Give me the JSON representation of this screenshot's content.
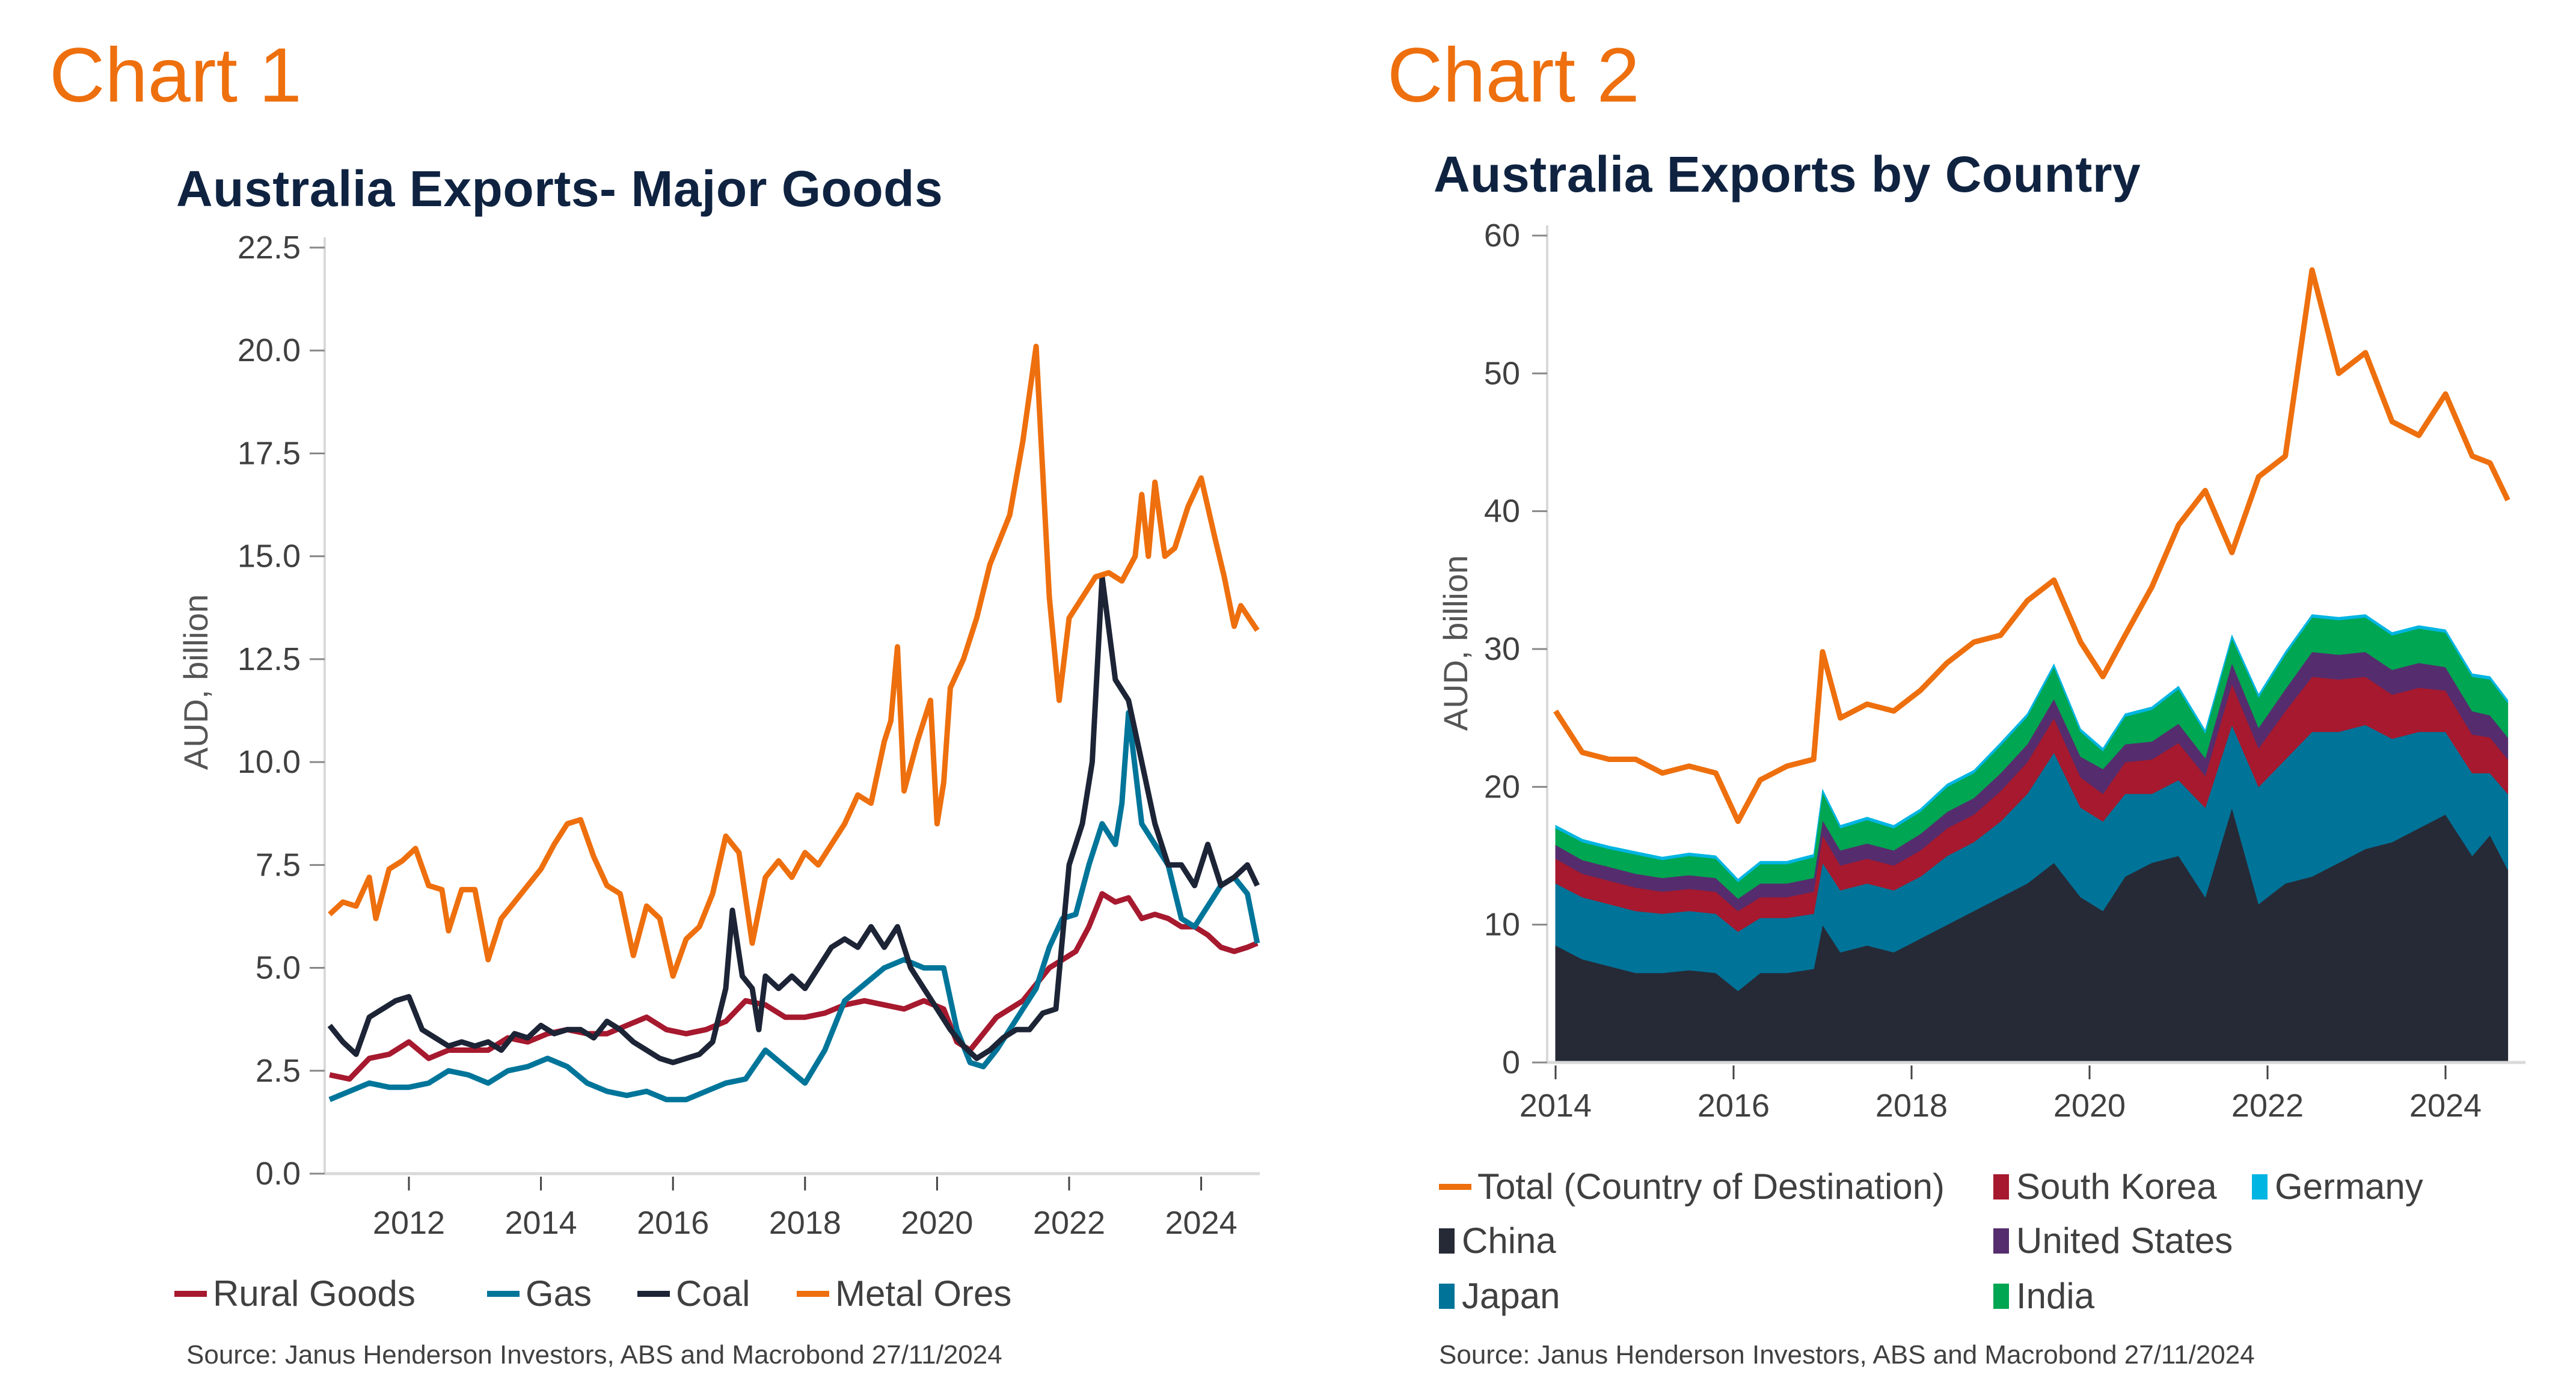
{
  "labels": {
    "chart1": "Chart 1",
    "chart2": "Chart 2"
  },
  "chart_data": [
    {
      "type": "line",
      "title": "Australia Exports- Major Goods",
      "xlabel": "",
      "ylabel": "AUD, billion",
      "xlim": [
        2010.75,
        2024.9
      ],
      "ylim": [
        0,
        22.5
      ],
      "yticks": [
        "0.0",
        "2.5",
        "5.0",
        "7.5",
        "10.0",
        "12.5",
        "15.0",
        "17.5",
        "20.0",
        "22.5"
      ],
      "xticks": [
        "2012",
        "2014",
        "2016",
        "2018",
        "2020",
        "2022",
        "2024"
      ],
      "grid": false,
      "legend_position": "bottom",
      "source": "Source: Janus Henderson Investors, ABS and Macrobond  27/11/2024",
      "series": [
        {
          "name": "Rural Goods",
          "color": "#a6192e",
          "x": [
            2010.8,
            2011.1,
            2011.4,
            2011.7,
            2012.0,
            2012.3,
            2012.6,
            2012.9,
            2013.2,
            2013.5,
            2013.8,
            2014.1,
            2014.4,
            2014.7,
            2015.0,
            2015.3,
            2015.6,
            2015.9,
            2016.2,
            2016.5,
            2016.8,
            2017.1,
            2017.4,
            2017.7,
            2018.0,
            2018.3,
            2018.6,
            2018.9,
            2019.2,
            2019.5,
            2019.8,
            2020.1,
            2020.3,
            2020.5,
            2020.7,
            2020.9,
            2021.1,
            2021.3,
            2021.5,
            2021.7,
            2021.9,
            2022.1,
            2022.3,
            2022.5,
            2022.7,
            2022.9,
            2023.1,
            2023.3,
            2023.5,
            2023.7,
            2023.9,
            2024.1,
            2024.3,
            2024.5,
            2024.7,
            2024.85
          ],
          "y": [
            2.4,
            2.3,
            2.8,
            2.9,
            3.2,
            2.8,
            3.0,
            3.0,
            3.0,
            3.3,
            3.2,
            3.4,
            3.5,
            3.4,
            3.4,
            3.6,
            3.8,
            3.5,
            3.4,
            3.5,
            3.7,
            4.2,
            4.1,
            3.8,
            3.8,
            3.9,
            4.1,
            4.2,
            4.1,
            4.0,
            4.2,
            4.0,
            3.2,
            3.0,
            3.4,
            3.8,
            4.0,
            4.2,
            4.6,
            5.0,
            5.2,
            5.4,
            6.0,
            6.8,
            6.6,
            6.7,
            6.2,
            6.3,
            6.2,
            6.0,
            6.0,
            5.8,
            5.5,
            5.4,
            5.5,
            5.6
          ]
        },
        {
          "name": "Gas",
          "color": "#00759a",
          "x": [
            2010.8,
            2011.1,
            2011.4,
            2011.7,
            2012.0,
            2012.3,
            2012.6,
            2012.9,
            2013.2,
            2013.5,
            2013.8,
            2014.1,
            2014.4,
            2014.7,
            2015.0,
            2015.3,
            2015.6,
            2015.9,
            2016.2,
            2016.5,
            2016.8,
            2017.1,
            2017.4,
            2017.7,
            2018.0,
            2018.3,
            2018.6,
            2018.9,
            2019.2,
            2019.5,
            2019.8,
            2020.1,
            2020.3,
            2020.5,
            2020.7,
            2020.9,
            2021.1,
            2021.3,
            2021.5,
            2021.7,
            2021.9,
            2022.1,
            2022.3,
            2022.5,
            2022.7,
            2022.8,
            2022.9,
            2023.1,
            2023.3,
            2023.5,
            2023.7,
            2023.9,
            2024.1,
            2024.3,
            2024.5,
            2024.7,
            2024.85
          ],
          "y": [
            1.8,
            2.0,
            2.2,
            2.1,
            2.1,
            2.2,
            2.5,
            2.4,
            2.2,
            2.5,
            2.6,
            2.8,
            2.6,
            2.2,
            2.0,
            1.9,
            2.0,
            1.8,
            1.8,
            2.0,
            2.2,
            2.3,
            3.0,
            2.6,
            2.2,
            3.0,
            4.2,
            4.6,
            5.0,
            5.2,
            5.0,
            5.0,
            3.5,
            2.7,
            2.6,
            3.0,
            3.5,
            4.0,
            4.5,
            5.5,
            6.2,
            6.3,
            7.5,
            8.5,
            8.0,
            9.0,
            11.2,
            8.5,
            8.0,
            7.5,
            6.2,
            6.0,
            6.5,
            7.0,
            7.2,
            6.8,
            5.6
          ]
        },
        {
          "name": "Coal",
          "color": "#1c2436",
          "x": [
            2010.8,
            2011.0,
            2011.2,
            2011.4,
            2011.6,
            2011.8,
            2012.0,
            2012.2,
            2012.4,
            2012.6,
            2012.8,
            2013.0,
            2013.2,
            2013.4,
            2013.6,
            2013.8,
            2014.0,
            2014.2,
            2014.4,
            2014.6,
            2014.8,
            2015.0,
            2015.2,
            2015.4,
            2015.6,
            2015.8,
            2016.0,
            2016.2,
            2016.4,
            2016.6,
            2016.8,
            2016.9,
            2017.05,
            2017.2,
            2017.3,
            2017.4,
            2017.6,
            2017.8,
            2018.0,
            2018.2,
            2018.4,
            2018.6,
            2018.8,
            2019.0,
            2019.2,
            2019.4,
            2019.6,
            2019.8,
            2020.0,
            2020.2,
            2020.4,
            2020.6,
            2020.8,
            2021.0,
            2021.2,
            2021.4,
            2021.6,
            2021.8,
            2022.0,
            2022.2,
            2022.35,
            2022.5,
            2022.7,
            2022.9,
            2023.1,
            2023.3,
            2023.5,
            2023.7,
            2023.9,
            2024.1,
            2024.3,
            2024.5,
            2024.7,
            2024.85
          ],
          "y": [
            3.6,
            3.2,
            2.9,
            3.8,
            4.0,
            4.2,
            4.3,
            3.5,
            3.3,
            3.1,
            3.2,
            3.1,
            3.2,
            3.0,
            3.4,
            3.3,
            3.6,
            3.4,
            3.5,
            3.5,
            3.3,
            3.7,
            3.5,
            3.2,
            3.0,
            2.8,
            2.7,
            2.8,
            2.9,
            3.2,
            4.5,
            6.4,
            4.8,
            4.5,
            3.5,
            4.8,
            4.5,
            4.8,
            4.5,
            5.0,
            5.5,
            5.7,
            5.5,
            6.0,
            5.5,
            6.0,
            5.0,
            4.5,
            4.0,
            3.5,
            3.1,
            2.8,
            3.0,
            3.3,
            3.5,
            3.5,
            3.9,
            4.0,
            7.5,
            8.5,
            10.0,
            14.5,
            12.0,
            11.5,
            10.0,
            8.5,
            7.5,
            7.5,
            7.0,
            8.0,
            7.0,
            7.2,
            7.5,
            7.0
          ]
        },
        {
          "name": "Metal Ores",
          "color": "#ee6f0d",
          "x": [
            2010.8,
            2011.0,
            2011.2,
            2011.4,
            2011.5,
            2011.7,
            2011.9,
            2012.1,
            2012.3,
            2012.5,
            2012.6,
            2012.8,
            2013.0,
            2013.2,
            2013.4,
            2013.6,
            2013.8,
            2014.0,
            2014.2,
            2014.4,
            2014.6,
            2014.8,
            2015.0,
            2015.2,
            2015.4,
            2015.6,
            2015.8,
            2016.0,
            2016.2,
            2016.4,
            2016.6,
            2016.8,
            2017.0,
            2017.2,
            2017.4,
            2017.6,
            2017.8,
            2018.0,
            2018.2,
            2018.4,
            2018.6,
            2018.8,
            2019.0,
            2019.2,
            2019.3,
            2019.4,
            2019.5,
            2019.7,
            2019.9,
            2020.0,
            2020.1,
            2020.2,
            2020.4,
            2020.6,
            2020.8,
            2020.9,
            2021.1,
            2021.3,
            2021.5,
            2021.7,
            2021.85,
            2022.0,
            2022.2,
            2022.4,
            2022.6,
            2022.8,
            2023.0,
            2023.1,
            2023.2,
            2023.3,
            2023.45,
            2023.6,
            2023.8,
            2024.0,
            2024.2,
            2024.35,
            2024.5,
            2024.6,
            2024.85
          ],
          "y": [
            6.3,
            6.6,
            6.5,
            7.2,
            6.2,
            7.4,
            7.6,
            7.9,
            7.0,
            6.9,
            5.9,
            6.9,
            6.9,
            5.2,
            6.2,
            6.6,
            7.0,
            7.4,
            8.0,
            8.5,
            8.6,
            7.7,
            7.0,
            6.8,
            5.3,
            6.5,
            6.2,
            4.8,
            5.7,
            6.0,
            6.8,
            8.2,
            7.8,
            5.6,
            7.2,
            7.6,
            7.2,
            7.8,
            7.5,
            8.0,
            8.5,
            9.2,
            9.0,
            10.5,
            11.0,
            12.8,
            9.3,
            10.5,
            11.5,
            8.5,
            9.5,
            11.8,
            12.5,
            13.5,
            14.8,
            15.2,
            16.0,
            17.8,
            20.1,
            14.0,
            11.5,
            13.5,
            14.0,
            14.5,
            14.6,
            14.4,
            15.0,
            16.5,
            15.0,
            16.8,
            15.0,
            15.2,
            16.2,
            16.9,
            15.5,
            14.5,
            13.3,
            13.8,
            13.2
          ]
        }
      ]
    },
    {
      "type": "area",
      "stacked": true,
      "title": "Australia Exports by Country",
      "xlabel": "",
      "ylabel": "AUD, billion",
      "xlim": [
        2013.95,
        2024.9
      ],
      "ylim": [
        0,
        60
      ],
      "yticks": [
        "0",
        "10",
        "20",
        "30",
        "40",
        "50",
        "60"
      ],
      "xticks": [
        "2014",
        "2016",
        "2018",
        "2020",
        "2022",
        "2024"
      ],
      "grid": false,
      "legend_position": "bottom",
      "source": "Source: Janus Henderson Investors, ABS and Macrobond  27/11/2024",
      "x": [
        2014.0,
        2014.3,
        2014.6,
        2014.9,
        2015.2,
        2015.5,
        2015.8,
        2016.05,
        2016.3,
        2016.6,
        2016.9,
        2017.0,
        2017.2,
        2017.5,
        2017.8,
        2018.1,
        2018.4,
        2018.7,
        2019.0,
        2019.3,
        2019.6,
        2019.9,
        2020.15,
        2020.4,
        2020.7,
        2021.0,
        2021.3,
        2021.6,
        2021.9,
        2022.2,
        2022.5,
        2022.8,
        2023.1,
        2023.4,
        2023.7,
        2024.0,
        2024.3,
        2024.5,
        2024.7
      ],
      "series": [
        {
          "name": "China",
          "color": "#262a36",
          "kind": "area",
          "values": [
            8.5,
            7.5,
            7.0,
            6.5,
            6.5,
            6.7,
            6.5,
            5.2,
            6.5,
            6.5,
            6.8,
            10.0,
            8.0,
            8.5,
            8.0,
            9.0,
            10.0,
            11.0,
            12.0,
            13.0,
            14.5,
            12.0,
            11.0,
            13.5,
            14.5,
            15.0,
            12.0,
            18.5,
            11.5,
            13.0,
            13.5,
            14.5,
            15.5,
            16.0,
            17.0,
            18.0,
            15.0,
            16.5,
            14.0
          ]
        },
        {
          "name": "Japan",
          "color": "#007398",
          "kind": "area",
          "values": [
            4.5,
            4.5,
            4.5,
            4.5,
            4.3,
            4.3,
            4.3,
            4.3,
            4.0,
            4.0,
            4.0,
            4.5,
            4.5,
            4.5,
            4.5,
            4.5,
            5.0,
            5.0,
            5.5,
            6.5,
            8.0,
            6.5,
            6.5,
            6.0,
            5.0,
            5.5,
            6.5,
            6.0,
            8.5,
            9.0,
            10.5,
            9.5,
            9.0,
            7.5,
            7.0,
            6.0,
            6.0,
            4.5,
            5.5
          ]
        },
        {
          "name": "South Korea",
          "color": "#a6192e",
          "kind": "area",
          "values": [
            1.8,
            1.7,
            1.7,
            1.7,
            1.6,
            1.6,
            1.6,
            1.5,
            1.5,
            1.5,
            1.6,
            2.0,
            1.8,
            1.8,
            1.8,
            1.9,
            2.0,
            2.0,
            2.2,
            2.3,
            2.5,
            2.2,
            2.0,
            2.3,
            2.5,
            2.7,
            2.3,
            3.0,
            2.8,
            3.5,
            4.0,
            3.8,
            3.5,
            3.2,
            3.2,
            3.0,
            2.8,
            2.6,
            2.5
          ]
        },
        {
          "name": "United States",
          "color": "#552d6e",
          "kind": "area",
          "values": [
            1.0,
            1.0,
            1.0,
            1.0,
            1.0,
            1.0,
            1.0,
            0.9,
            1.0,
            1.0,
            1.0,
            1.1,
            1.1,
            1.1,
            1.1,
            1.2,
            1.2,
            1.2,
            1.3,
            1.3,
            1.4,
            1.5,
            1.8,
            1.3,
            1.3,
            1.4,
            1.3,
            1.5,
            1.5,
            1.6,
            1.8,
            1.8,
            1.8,
            1.8,
            1.8,
            1.7,
            1.7,
            1.6,
            1.6
          ]
        },
        {
          "name": "India",
          "color": "#00a651",
          "kind": "area",
          "values": [
            1.2,
            1.3,
            1.3,
            1.4,
            1.3,
            1.4,
            1.4,
            1.2,
            1.4,
            1.4,
            1.5,
            2.0,
            1.6,
            1.7,
            1.6,
            1.6,
            1.8,
            1.8,
            2.0,
            2.0,
            2.3,
            1.8,
            1.3,
            2.0,
            2.3,
            2.5,
            1.8,
            1.8,
            2.2,
            2.5,
            2.5,
            2.5,
            2.5,
            2.5,
            2.5,
            2.5,
            2.5,
            2.6,
            2.5
          ]
        },
        {
          "name": "Germany",
          "color": "#00b5e2",
          "kind": "area",
          "values": [
            0.2,
            0.2,
            0.2,
            0.2,
            0.2,
            0.2,
            0.2,
            0.2,
            0.2,
            0.2,
            0.2,
            0.2,
            0.2,
            0.2,
            0.2,
            0.2,
            0.2,
            0.2,
            0.2,
            0.2,
            0.2,
            0.2,
            0.2,
            0.2,
            0.2,
            0.2,
            0.2,
            0.2,
            0.2,
            0.2,
            0.2,
            0.2,
            0.2,
            0.2,
            0.2,
            0.2,
            0.2,
            0.2,
            0.2
          ]
        },
        {
          "name": "Total (Country of Destination)",
          "color": "#ee6f0d",
          "kind": "line",
          "values": [
            25.5,
            22.5,
            22.0,
            22.0,
            21.0,
            21.5,
            21.0,
            17.5,
            20.5,
            21.5,
            22.0,
            29.8,
            25.0,
            26.0,
            25.5,
            27.0,
            29.0,
            30.5,
            31.0,
            33.5,
            35.0,
            30.5,
            28.0,
            31.0,
            34.5,
            39.0,
            41.5,
            37.0,
            42.5,
            44.0,
            57.5,
            50.0,
            51.5,
            46.5,
            45.5,
            48.5,
            44.0,
            43.5,
            40.8
          ]
        }
      ],
      "legend": [
        {
          "name": "Total (Country of Destination)",
          "color": "#ee6f0d",
          "marker": "line"
        },
        {
          "name": "South Korea",
          "color": "#a6192e",
          "marker": "box"
        },
        {
          "name": "Germany",
          "color": "#00b5e2",
          "marker": "box"
        },
        {
          "name": "China",
          "color": "#262a36",
          "marker": "box"
        },
        {
          "name": "United States",
          "color": "#552d6e",
          "marker": "box"
        },
        {
          "name": "Japan",
          "color": "#007398",
          "marker": "box"
        },
        {
          "name": "India",
          "color": "#00a651",
          "marker": "box"
        }
      ]
    }
  ]
}
